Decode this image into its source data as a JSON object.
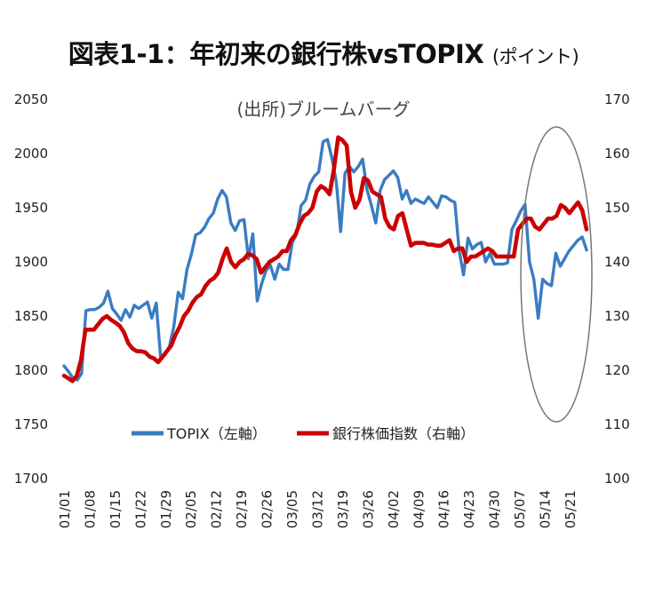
{
  "chart_data": {
    "type": "line",
    "title": "図表1-1：年初来の銀行株vsTOPIX",
    "title_suffix": "(ポイント)",
    "source": "(出所)ブルームバーグ",
    "x_tick_labels": [
      "01/01",
      "01/08",
      "01/15",
      "01/22",
      "01/29",
      "02/05",
      "02/12",
      "02/19",
      "02/26",
      "03/05",
      "03/12",
      "03/19",
      "03/26",
      "04/02",
      "04/09",
      "04/16",
      "04/23",
      "04/30",
      "05/07",
      "05/14",
      "05/21"
    ],
    "y_left": {
      "min": 1700,
      "max": 2050,
      "ticks": [
        "2050",
        "2000",
        "1950",
        "1900",
        "1850",
        "1800",
        "1750",
        "1700"
      ]
    },
    "y_right": {
      "min": 100,
      "max": 170,
      "ticks": [
        "170",
        "160",
        "150",
        "140",
        "130",
        "120",
        "110",
        "100"
      ]
    },
    "legend_position": "bottom-center",
    "grid": false,
    "annotation": "ellipse highlighting May period",
    "series": [
      {
        "name": "TOPIX（左軸）",
        "axis": "left",
        "color": "#3a7cc2",
        "values": [
          1804,
          1799,
          1793,
          1791,
          1797,
          1855,
          1856,
          1856,
          1858,
          1862,
          1873,
          1857,
          1852,
          1846,
          1856,
          1849,
          1860,
          1857,
          1860,
          1863,
          1848,
          1862,
          1812,
          1814,
          1822,
          1840,
          1872,
          1866,
          1893,
          1907,
          1925,
          1927,
          1932,
          1940,
          1945,
          1958,
          1966,
          1960,
          1936,
          1929,
          1938,
          1939,
          1903,
          1926,
          1864,
          1880,
          1892,
          1897,
          1884,
          1898,
          1893,
          1893,
          1918,
          1926,
          1952,
          1957,
          1972,
          1979,
          1983,
          2011,
          2013,
          1996,
          1974,
          1928,
          1982,
          1988,
          1983,
          1988,
          1995,
          1967,
          1952,
          1936,
          1966,
          1976,
          1980,
          1984,
          1978,
          1958,
          1966,
          1954,
          1958,
          1956,
          1954,
          1960,
          1955,
          1950,
          1961,
          1960,
          1957,
          1955,
          1910,
          1888,
          1922,
          1912,
          1916,
          1918,
          1900,
          1908,
          1898,
          1898,
          1898,
          1899,
          1930,
          1938,
          1947,
          1953,
          1900,
          1884,
          1848,
          1884,
          1880,
          1878,
          1908,
          1896,
          1903,
          1910,
          1915,
          1920,
          1923,
          1911
        ],
        "values_note": "daily closes read off chart"
      },
      {
        "name": "銀行株価指数（右軸）",
        "axis": "right",
        "color": "#cc0000",
        "values": [
          119,
          118.5,
          118,
          119,
          122,
          127.5,
          127.5,
          127.5,
          128.5,
          129.5,
          130,
          129.3,
          128.8,
          128.2,
          127,
          125,
          124,
          123.5,
          123.5,
          123.3,
          122.5,
          122.2,
          121.5,
          122.5,
          123.5,
          124.5,
          126.5,
          128,
          130,
          131,
          132.5,
          133.5,
          134,
          135.5,
          136.5,
          137,
          138,
          140.5,
          142.5,
          140,
          139,
          140,
          140.5,
          141.5,
          141.2,
          140.5,
          138,
          139,
          140,
          140.5,
          141,
          142,
          142,
          144,
          145,
          147,
          148.5,
          149,
          150,
          153,
          154,
          153.5,
          152.5,
          157,
          163,
          162.5,
          161.5,
          153,
          150,
          151.5,
          155.5,
          155,
          153,
          152.5,
          152,
          148,
          146.5,
          146,
          148.5,
          149,
          146,
          143,
          143.5,
          143.5,
          143.5,
          143.2,
          143.2,
          143,
          143,
          143.5,
          144,
          142,
          142.5,
          142.5,
          140,
          141,
          141,
          141.5,
          142,
          142.5,
          142,
          141,
          141,
          141,
          141,
          141,
          146,
          147,
          148,
          148,
          146.5,
          146,
          147,
          148,
          148,
          148.5,
          150.5,
          150,
          149,
          150,
          151,
          149.5,
          146
        ]
      }
    ]
  },
  "legend": {
    "topix_label": "TOPIX（左軸）",
    "bank_label": "銀行株価指数（右軸）"
  }
}
